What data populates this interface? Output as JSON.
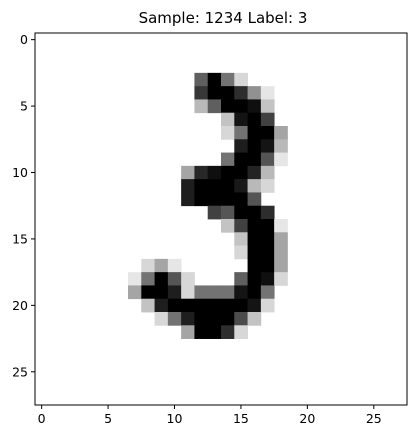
{
  "chart_data": {
    "type": "heatmap",
    "title": "Sample: 1234  Label: 3",
    "colormap": "gray_r",
    "value_range": [
      0,
      255
    ],
    "rows": 28,
    "cols": 28,
    "xlim": [
      -0.5,
      27.5
    ],
    "ylim": [
      27.5,
      -0.5
    ],
    "xticks": [
      "0",
      "5",
      "10",
      "15",
      "20",
      "25"
    ],
    "yticks": [
      "0",
      "5",
      "10",
      "15",
      "20",
      "25"
    ],
    "pixels": [
      {
        "r": 3,
        "c": 12,
        "v": 160
      },
      {
        "r": 3,
        "c": 13,
        "v": 255
      },
      {
        "r": 3,
        "c": 14,
        "v": 140
      },
      {
        "r": 3,
        "c": 15,
        "v": 40
      },
      {
        "r": 4,
        "c": 12,
        "v": 200
      },
      {
        "r": 4,
        "c": 13,
        "v": 255
      },
      {
        "r": 4,
        "c": 14,
        "v": 255
      },
      {
        "r": 4,
        "c": 15,
        "v": 210
      },
      {
        "r": 4,
        "c": 16,
        "v": 110
      },
      {
        "r": 4,
        "c": 17,
        "v": 25
      },
      {
        "r": 5,
        "c": 12,
        "v": 70
      },
      {
        "r": 5,
        "c": 13,
        "v": 160
      },
      {
        "r": 5,
        "c": 14,
        "v": 255
      },
      {
        "r": 5,
        "c": 15,
        "v": 255
      },
      {
        "r": 5,
        "c": 16,
        "v": 240
      },
      {
        "r": 5,
        "c": 17,
        "v": 60
      },
      {
        "r": 6,
        "c": 14,
        "v": 60
      },
      {
        "r": 6,
        "c": 15,
        "v": 235
      },
      {
        "r": 6,
        "c": 16,
        "v": 255
      },
      {
        "r": 6,
        "c": 17,
        "v": 190
      },
      {
        "r": 7,
        "c": 14,
        "v": 40
      },
      {
        "r": 7,
        "c": 15,
        "v": 140
      },
      {
        "r": 7,
        "c": 16,
        "v": 255
      },
      {
        "r": 7,
        "c": 17,
        "v": 255
      },
      {
        "r": 7,
        "c": 18,
        "v": 90
      },
      {
        "r": 8,
        "c": 15,
        "v": 225
      },
      {
        "r": 8,
        "c": 16,
        "v": 255
      },
      {
        "r": 8,
        "c": 17,
        "v": 235
      },
      {
        "r": 8,
        "c": 18,
        "v": 70
      },
      {
        "r": 9,
        "c": 14,
        "v": 140
      },
      {
        "r": 9,
        "c": 15,
        "v": 255
      },
      {
        "r": 9,
        "c": 16,
        "v": 255
      },
      {
        "r": 9,
        "c": 17,
        "v": 170
      },
      {
        "r": 9,
        "c": 18,
        "v": 25
      },
      {
        "r": 10,
        "c": 11,
        "v": 90
      },
      {
        "r": 10,
        "c": 12,
        "v": 215
      },
      {
        "r": 10,
        "c": 13,
        "v": 240
      },
      {
        "r": 10,
        "c": 14,
        "v": 255
      },
      {
        "r": 10,
        "c": 15,
        "v": 255
      },
      {
        "r": 10,
        "c": 16,
        "v": 220
      },
      {
        "r": 10,
        "c": 17,
        "v": 70
      },
      {
        "r": 11,
        "c": 11,
        "v": 225
      },
      {
        "r": 11,
        "c": 12,
        "v": 255
      },
      {
        "r": 11,
        "c": 13,
        "v": 255
      },
      {
        "r": 11,
        "c": 14,
        "v": 255
      },
      {
        "r": 11,
        "c": 15,
        "v": 230
      },
      {
        "r": 11,
        "c": 16,
        "v": 70
      },
      {
        "r": 11,
        "c": 17,
        "v": 40
      },
      {
        "r": 12,
        "c": 11,
        "v": 225
      },
      {
        "r": 12,
        "c": 12,
        "v": 255
      },
      {
        "r": 12,
        "c": 13,
        "v": 255
      },
      {
        "r": 12,
        "c": 14,
        "v": 255
      },
      {
        "r": 12,
        "c": 15,
        "v": 255
      },
      {
        "r": 12,
        "c": 16,
        "v": 170
      },
      {
        "r": 13,
        "c": 13,
        "v": 190
      },
      {
        "r": 13,
        "c": 14,
        "v": 170
      },
      {
        "r": 13,
        "c": 15,
        "v": 255
      },
      {
        "r": 13,
        "c": 16,
        "v": 255
      },
      {
        "r": 13,
        "c": 17,
        "v": 210
      },
      {
        "r": 14,
        "c": 14,
        "v": 60
      },
      {
        "r": 14,
        "c": 15,
        "v": 190
      },
      {
        "r": 14,
        "c": 16,
        "v": 255
      },
      {
        "r": 14,
        "c": 17,
        "v": 255
      },
      {
        "r": 14,
        "c": 18,
        "v": 25
      },
      {
        "r": 15,
        "c": 15,
        "v": 60
      },
      {
        "r": 15,
        "c": 16,
        "v": 255
      },
      {
        "r": 15,
        "c": 17,
        "v": 255
      },
      {
        "r": 15,
        "c": 18,
        "v": 90
      },
      {
        "r": 16,
        "c": 15,
        "v": 40
      },
      {
        "r": 16,
        "c": 16,
        "v": 255
      },
      {
        "r": 16,
        "c": 17,
        "v": 255
      },
      {
        "r": 16,
        "c": 18,
        "v": 90
      },
      {
        "r": 17,
        "c": 8,
        "v": 40
      },
      {
        "r": 17,
        "c": 9,
        "v": 90
      },
      {
        "r": 17,
        "c": 10,
        "v": 25
      },
      {
        "r": 17,
        "c": 16,
        "v": 255
      },
      {
        "r": 17,
        "c": 17,
        "v": 255
      },
      {
        "r": 17,
        "c": 18,
        "v": 90
      },
      {
        "r": 18,
        "c": 7,
        "v": 25
      },
      {
        "r": 18,
        "c": 8,
        "v": 140
      },
      {
        "r": 18,
        "c": 9,
        "v": 255
      },
      {
        "r": 18,
        "c": 10,
        "v": 170
      },
      {
        "r": 18,
        "c": 11,
        "v": 40
      },
      {
        "r": 18,
        "c": 15,
        "v": 160
      },
      {
        "r": 18,
        "c": 16,
        "v": 255
      },
      {
        "r": 18,
        "c": 17,
        "v": 240
      },
      {
        "r": 18,
        "c": 18,
        "v": 40
      },
      {
        "r": 19,
        "c": 7,
        "v": 90
      },
      {
        "r": 19,
        "c": 8,
        "v": 255
      },
      {
        "r": 19,
        "c": 9,
        "v": 255
      },
      {
        "r": 19,
        "c": 10,
        "v": 225
      },
      {
        "r": 19,
        "c": 11,
        "v": 40
      },
      {
        "r": 19,
        "c": 12,
        "v": 140
      },
      {
        "r": 19,
        "c": 13,
        "v": 140
      },
      {
        "r": 19,
        "c": 14,
        "v": 140
      },
      {
        "r": 19,
        "c": 15,
        "v": 235
      },
      {
        "r": 19,
        "c": 16,
        "v": 255
      },
      {
        "r": 19,
        "c": 17,
        "v": 140
      },
      {
        "r": 20,
        "c": 8,
        "v": 60
      },
      {
        "r": 20,
        "c": 9,
        "v": 225
      },
      {
        "r": 20,
        "c": 10,
        "v": 255
      },
      {
        "r": 20,
        "c": 11,
        "v": 255
      },
      {
        "r": 20,
        "c": 12,
        "v": 255
      },
      {
        "r": 20,
        "c": 13,
        "v": 255
      },
      {
        "r": 20,
        "c": 14,
        "v": 255
      },
      {
        "r": 20,
        "c": 15,
        "v": 255
      },
      {
        "r": 20,
        "c": 16,
        "v": 235
      },
      {
        "r": 20,
        "c": 17,
        "v": 40
      },
      {
        "r": 21,
        "c": 9,
        "v": 40
      },
      {
        "r": 21,
        "c": 10,
        "v": 140
      },
      {
        "r": 21,
        "c": 11,
        "v": 225
      },
      {
        "r": 21,
        "c": 12,
        "v": 255
      },
      {
        "r": 21,
        "c": 13,
        "v": 255
      },
      {
        "r": 21,
        "c": 14,
        "v": 255
      },
      {
        "r": 21,
        "c": 15,
        "v": 180
      },
      {
        "r": 21,
        "c": 16,
        "v": 60
      },
      {
        "r": 22,
        "c": 11,
        "v": 90
      },
      {
        "r": 22,
        "c": 12,
        "v": 255
      },
      {
        "r": 22,
        "c": 13,
        "v": 255
      },
      {
        "r": 22,
        "c": 14,
        "v": 210
      },
      {
        "r": 22,
        "c": 15,
        "v": 40
      }
    ]
  }
}
